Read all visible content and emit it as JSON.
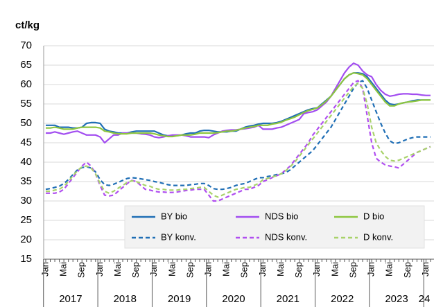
{
  "chart_data": {
    "type": "line",
    "y_label": "ct/kg",
    "categories": [
      "Jan",
      null,
      null,
      null,
      "Mai",
      null,
      null,
      null,
      "Sep",
      null,
      null,
      null,
      "Jan",
      null,
      null,
      null,
      "Mai",
      null,
      null,
      null,
      "Sep",
      null,
      null,
      null,
      "Jan",
      null,
      null,
      null,
      "Mai",
      null,
      null,
      null,
      "Sep",
      null,
      null,
      null,
      "Jan",
      null,
      null,
      null,
      "Mai",
      null,
      null,
      null,
      "Sep",
      null,
      null,
      null,
      "Jan",
      null,
      null,
      null,
      "Mai",
      null,
      null,
      null,
      "Sep",
      null,
      null,
      null,
      "Jan",
      null,
      null,
      null,
      "Mai",
      null,
      null,
      null,
      "Sep",
      null,
      null,
      null,
      "Jan",
      null,
      null,
      null,
      "Mai",
      null,
      null,
      null,
      "Sep",
      null,
      null,
      null,
      "Jan",
      null
    ],
    "year_labels": [
      "2017",
      "2018",
      "2019",
      "2020",
      "2021",
      "2022",
      "2023",
      "24"
    ],
    "ylim": [
      15,
      70
    ],
    "yticks": [
      15,
      20,
      25,
      30,
      35,
      40,
      45,
      50,
      55,
      60,
      65,
      70
    ],
    "grid": true,
    "series": [
      {
        "name": "BY bio",
        "color": "#1f6eb5",
        "dashed": false,
        "values": [
          49.5,
          49.5,
          49.5,
          49,
          49,
          49,
          48.8,
          48.8,
          49,
          50,
          50.2,
          50.2,
          50,
          48.5,
          48,
          47.8,
          47.5,
          47.5,
          47.5,
          47.8,
          48,
          48,
          48,
          48,
          48,
          47.5,
          47,
          46.8,
          46.8,
          46.8,
          47,
          47.3,
          47.5,
          47.5,
          48,
          48.2,
          48.2,
          48,
          47.8,
          47.8,
          47.8,
          48,
          48,
          48.5,
          49,
          49.3,
          49.5,
          49.8,
          50,
          50,
          50,
          50.2,
          50.5,
          51,
          51.5,
          52,
          52.5,
          53,
          53.5,
          53.8,
          54,
          55,
          56,
          57,
          58.5,
          60,
          61.5,
          62.5,
          63,
          63,
          62.8,
          62,
          60.5,
          59,
          57.5,
          56,
          55,
          54.8,
          55,
          55.3,
          55.5,
          55.8,
          56,
          56,
          56,
          56
        ]
      },
      {
        "name": "NDS bio",
        "color": "#a24df0",
        "dashed": false,
        "values": [
          47.5,
          47.5,
          47.8,
          47.5,
          47.2,
          47.5,
          47.8,
          48,
          47.5,
          47,
          47,
          47,
          46.5,
          45,
          46,
          47,
          47,
          47.5,
          47.5,
          47.5,
          47.5,
          47.3,
          47.2,
          47,
          46.5,
          46.3,
          46.5,
          46.8,
          47,
          47,
          47,
          46.8,
          46.5,
          46.5,
          46.5,
          46.5,
          46.3,
          47,
          47.5,
          48,
          48.2,
          48.3,
          48.3,
          48.5,
          48.6,
          48.8,
          49,
          49.5,
          48.5,
          48.5,
          48.5,
          48.8,
          49,
          49.5,
          50,
          50.5,
          51,
          52.5,
          52.8,
          53,
          53.5,
          54.5,
          55.5,
          57,
          59,
          61,
          63,
          64.5,
          65.5,
          65,
          63.5,
          62.5,
          62,
          60,
          58.5,
          57.5,
          57,
          57.2,
          57.5,
          57.6,
          57.6,
          57.5,
          57.5,
          57.3,
          57.2,
          57.2
        ]
      },
      {
        "name": "D bio",
        "color": "#8dc63f",
        "dashed": false,
        "values": [
          48.8,
          48.8,
          49,
          48.8,
          48.5,
          48.5,
          48.5,
          48.8,
          49,
          49,
          49,
          49,
          48.8,
          48,
          47.8,
          47.5,
          47.3,
          47.3,
          47.3,
          47.5,
          47.5,
          47.5,
          47.5,
          47.5,
          47.3,
          47,
          46.8,
          46.6,
          46.6,
          46.8,
          47,
          47,
          47,
          47.2,
          47.5,
          47.5,
          47.5,
          47.5,
          47.6,
          47.8,
          48,
          48,
          48.2,
          48.5,
          48.8,
          49,
          49.2,
          49.5,
          49.5,
          49.5,
          49.8,
          50,
          50.3,
          50.8,
          51.2,
          51.6,
          52.2,
          52.8,
          53.3,
          53.6,
          54,
          54.8,
          55.8,
          57,
          58.5,
          60,
          61.5,
          62.5,
          63,
          62.8,
          62.5,
          61.5,
          60,
          58.5,
          57,
          55.5,
          54.5,
          54.5,
          55,
          55.3,
          55.5,
          55.6,
          55.8,
          56,
          56,
          56
        ]
      },
      {
        "name": "BY konv.",
        "color": "#1f6eb5",
        "dashed": true,
        "values": [
          33,
          33.2,
          33.5,
          33.8,
          34.5,
          35.5,
          36.8,
          38,
          38.6,
          38.8,
          38.5,
          37.5,
          35.5,
          34.2,
          34,
          34.3,
          34.8,
          35.3,
          35.8,
          36,
          35.9,
          35.7,
          35.5,
          35.3,
          35,
          34.8,
          34.5,
          34.2,
          34,
          34,
          34,
          34,
          34.2,
          34.3,
          34.5,
          34.5,
          34,
          33.2,
          33,
          33,
          33.2,
          33.5,
          34,
          34.3,
          34.5,
          35,
          35.5,
          36,
          36,
          36.3,
          36.5,
          36.8,
          37,
          37.3,
          38,
          39,
          40,
          41,
          42,
          43,
          44.5,
          46,
          47.5,
          49,
          51,
          53,
          55,
          57,
          59,
          60.5,
          61,
          59,
          56,
          53,
          50,
          47.5,
          45.5,
          44.8,
          45,
          45.5,
          46,
          46.3,
          46.5,
          46.5,
          46.5,
          46.5
        ]
      },
      {
        "name": "NDS konv.",
        "color": "#b04ef0",
        "dashed": true,
        "values": [
          32,
          32,
          32,
          32.3,
          33,
          34.5,
          36,
          37.5,
          39,
          40,
          39,
          37,
          34,
          31.5,
          31.3,
          31.5,
          32.5,
          33.5,
          34.5,
          35.3,
          35,
          34,
          33,
          32.8,
          32.5,
          32.3,
          32.3,
          32.2,
          32.2,
          32.3,
          32.5,
          32.7,
          32.8,
          33,
          33,
          33,
          31.5,
          30,
          30,
          30.5,
          31,
          31.5,
          32,
          32.5,
          33,
          33,
          33.5,
          34,
          35,
          35.5,
          36,
          36.5,
          37,
          38,
          39,
          40.5,
          42,
          43.5,
          45,
          47,
          48.5,
          50,
          51.5,
          53,
          54.5,
          56,
          57.5,
          59,
          60.5,
          61,
          59,
          52,
          45,
          41,
          40,
          39.3,
          39,
          38.8,
          38.5,
          39.5,
          40.5,
          41.5,
          42.5,
          43,
          43.5,
          44
        ]
      },
      {
        "name": "D konv.",
        "color": "#a8d26a",
        "dashed": true,
        "values": [
          32.5,
          32.5,
          32.8,
          33,
          33.8,
          35,
          36.5,
          37.8,
          38.8,
          39,
          38.5,
          37,
          34.5,
          32.5,
          32,
          32.5,
          33.3,
          34,
          34.8,
          35.2,
          35,
          34.5,
          34,
          33.8,
          33.3,
          33,
          33,
          32.8,
          32.8,
          32.8,
          33,
          33,
          33.2,
          33.3,
          33.5,
          33.5,
          32.5,
          31.5,
          31,
          31.5,
          32,
          32.5,
          33,
          33.2,
          33.5,
          33.5,
          34,
          34.5,
          35.5,
          35.8,
          36.2,
          36.5,
          37,
          37.8,
          38.8,
          40,
          41.5,
          43,
          44.5,
          46,
          47.5,
          49,
          50.5,
          52,
          53.5,
          55,
          56.5,
          58,
          59.5,
          60.3,
          59,
          55,
          49,
          45,
          43,
          41.5,
          40.5,
          40.3,
          40.5,
          41,
          41.5,
          42,
          42.5,
          43,
          43.5,
          44
        ]
      }
    ]
  }
}
